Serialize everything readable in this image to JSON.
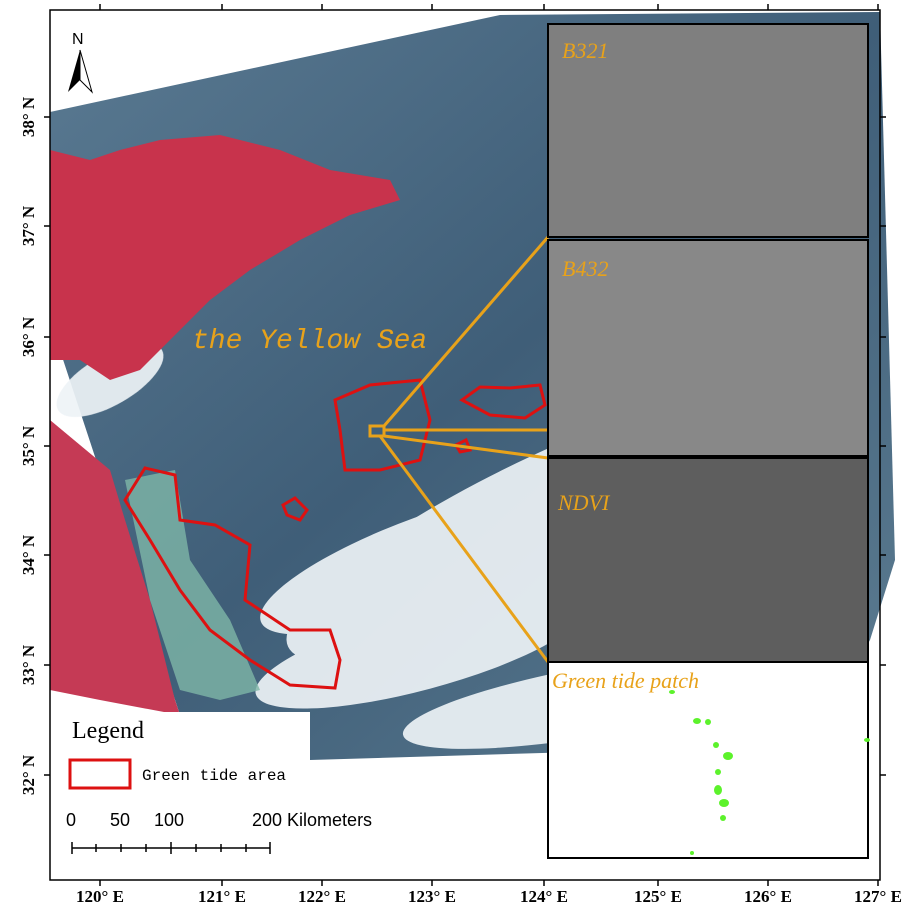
{
  "map": {
    "north_arrow": "N",
    "lat_labels": [
      "38° N",
      "37° N",
      "36° N",
      "35° N",
      "34° N",
      "33° N",
      "32° N"
    ],
    "lon_labels": [
      "120° E",
      "121° E",
      "122° E",
      "123° E",
      "124° E",
      "125° E",
      "126° E",
      "127° E"
    ],
    "sea_label": "the Yellow Sea",
    "insets": [
      "B321",
      "B432",
      "NDVI",
      "Green tide patch"
    ],
    "legend": {
      "title": "Legend",
      "items": [
        "Green tide area"
      ]
    },
    "scale_bar": {
      "labels": [
        "0",
        "50",
        "100",
        "200 Kilometers"
      ]
    }
  }
}
